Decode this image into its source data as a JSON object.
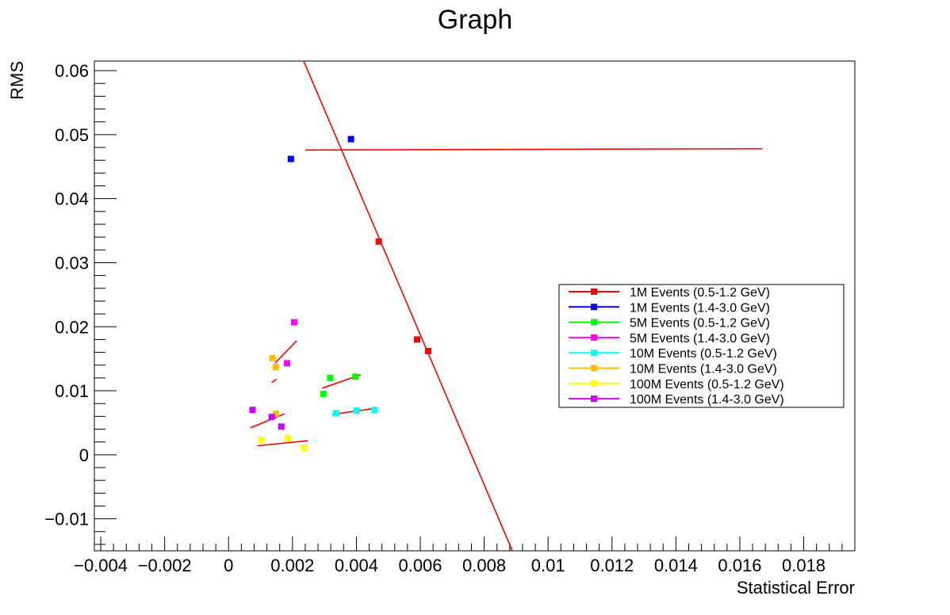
{
  "chart_data": {
    "type": "scatter",
    "title": "Graph",
    "xlabel": "Statistical Error",
    "ylabel": "RMS",
    "xlim": [
      -0.0042,
      0.0196
    ],
    "ylim": [
      -0.015,
      0.0615
    ],
    "x_ticks": [
      -0.004,
      -0.002,
      0,
      0.002,
      0.004,
      0.006,
      0.008,
      0.01,
      0.012,
      0.014,
      0.016,
      0.018
    ],
    "x_tick_labels": [
      "−0.004",
      "−0.002",
      "0",
      "0.002",
      "0.004",
      "0.006",
      "0.008",
      "0.01",
      "0.012",
      "0.014",
      "0.016",
      "0.018"
    ],
    "y_ticks": [
      -0.01,
      0,
      0.01,
      0.02,
      0.03,
      0.04,
      0.05,
      0.06
    ],
    "y_tick_labels": [
      "−0.01",
      "0",
      "0.01",
      "0.02",
      "0.03",
      "0.04",
      "0.05",
      "0.06"
    ],
    "grid": false,
    "legend_position": "right",
    "series": [
      {
        "name": "1M Events (0.5-1.2 GeV)",
        "color": "#ff0000",
        "points": [
          [
            0.0047,
            0.0333
          ],
          [
            0.0059,
            0.018
          ],
          [
            0.00625,
            0.0162
          ]
        ],
        "fit": [
          [
            0.00235,
            0.0615
          ],
          [
            0.00888,
            -0.015
          ]
        ]
      },
      {
        "name": "1M Events (1.4-3.0 GeV)",
        "color": "#0000ff",
        "points": [
          [
            0.00195,
            0.0462
          ],
          [
            0.00383,
            0.0493
          ]
        ],
        "fit": [
          [
            0.0024,
            0.0476
          ],
          [
            0.0167,
            0.0478
          ]
        ]
      },
      {
        "name": "5M Events (0.5-1.2 GeV)",
        "color": "#00ff00",
        "points": [
          [
            0.00297,
            0.0095
          ],
          [
            0.00318,
            0.012
          ],
          [
            0.00397,
            0.0122
          ]
        ],
        "fit": [
          [
            0.00293,
            0.0104
          ],
          [
            0.00413,
            0.0125
          ]
        ]
      },
      {
        "name": "5M Events (1.4-3.0 GeV)",
        "color": "#ff00ff",
        "points": [
          [
            0.00205,
            0.0207
          ],
          [
            0.00183,
            0.0143
          ]
        ],
        "fit": [
          [
            0.00145,
            0.0143
          ],
          [
            0.00213,
            0.0178
          ]
        ]
      },
      {
        "name": "10M Events (0.5-1.2 GeV)",
        "color": "#00ffff",
        "points": [
          [
            0.00337,
            0.0065
          ],
          [
            0.004,
            0.0069
          ],
          [
            0.00457,
            0.007
          ]
        ],
        "fit": [
          [
            0.00325,
            0.0063
          ],
          [
            0.00465,
            0.0073
          ]
        ]
      },
      {
        "name": "10M Events (1.4-3.0 GeV)",
        "color": "#ffbb00",
        "points": [
          [
            0.00137,
            0.0151
          ],
          [
            0.00148,
            0.0137
          ],
          [
            0.00148,
            0.0064
          ]
        ],
        "fit": [
          [
            0.00135,
            0.0113
          ],
          [
            0.0015,
            0.0118
          ]
        ]
      },
      {
        "name": "100M Events (0.5-1.2 GeV)",
        "color": "#ffff00",
        "points": [
          [
            0.00103,
            0.0023
          ],
          [
            0.00185,
            0.0026
          ],
          [
            0.00237,
            0.0011
          ]
        ],
        "fit": [
          [
            0.0009,
            0.0014
          ],
          [
            0.00248,
            0.0022
          ]
        ]
      },
      {
        "name": "100M Events (1.4-3.0 GeV)",
        "color": "#cc00ff",
        "points": [
          [
            0.00075,
            0.007
          ],
          [
            0.00135,
            0.0059
          ],
          [
            0.00165,
            0.0044
          ]
        ],
        "fit": [
          [
            0.00068,
            0.0042
          ],
          [
            0.00175,
            0.0064
          ]
        ]
      }
    ]
  }
}
